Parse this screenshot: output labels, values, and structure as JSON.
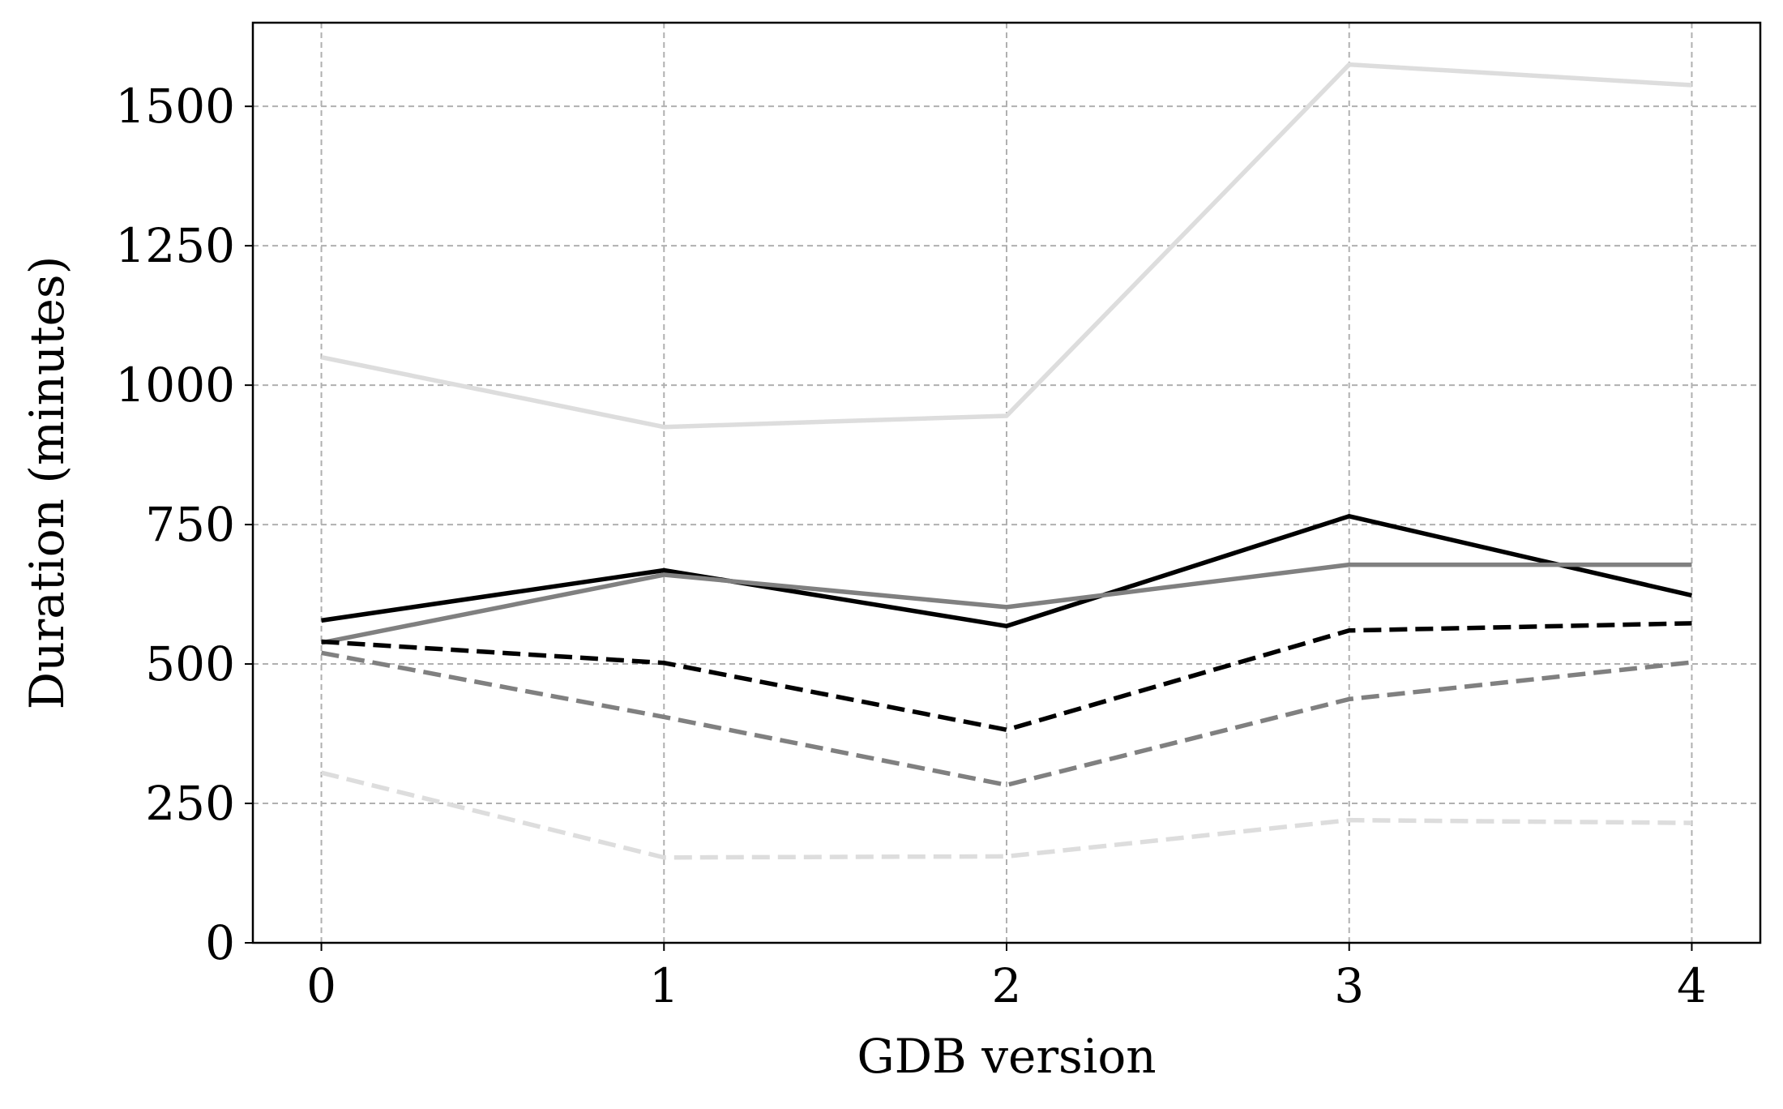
{
  "chart_data": {
    "type": "line",
    "title": "",
    "xlabel": "GDB version",
    "ylabel": "Duration (minutes)",
    "x": [
      0,
      1,
      2,
      3,
      4
    ],
    "xticks": [
      "0",
      "1",
      "2",
      "3",
      "4"
    ],
    "yticks": [
      "0",
      "250",
      "500",
      "750",
      "1000",
      "1250",
      "1500"
    ],
    "xlim": [
      -0.2,
      4.2
    ],
    "ylim": [
      0,
      1650
    ],
    "grid": true,
    "legend": "none",
    "series": [
      {
        "color": "#000000",
        "style": "solid",
        "values": [
          578,
          668,
          568,
          765,
          623
        ]
      },
      {
        "color": "#808080",
        "style": "solid",
        "values": [
          538,
          660,
          602,
          678,
          678
        ]
      },
      {
        "color": "#dddddd",
        "style": "solid",
        "values": [
          1050,
          925,
          945,
          1575,
          1538
        ]
      },
      {
        "color": "#000000",
        "style": "dashed",
        "values": [
          540,
          502,
          382,
          560,
          573
        ]
      },
      {
        "color": "#808080",
        "style": "dashed",
        "values": [
          520,
          405,
          283,
          437,
          503
        ]
      },
      {
        "color": "#dddddd",
        "style": "dashed",
        "values": [
          305,
          153,
          155,
          220,
          215
        ]
      }
    ]
  }
}
